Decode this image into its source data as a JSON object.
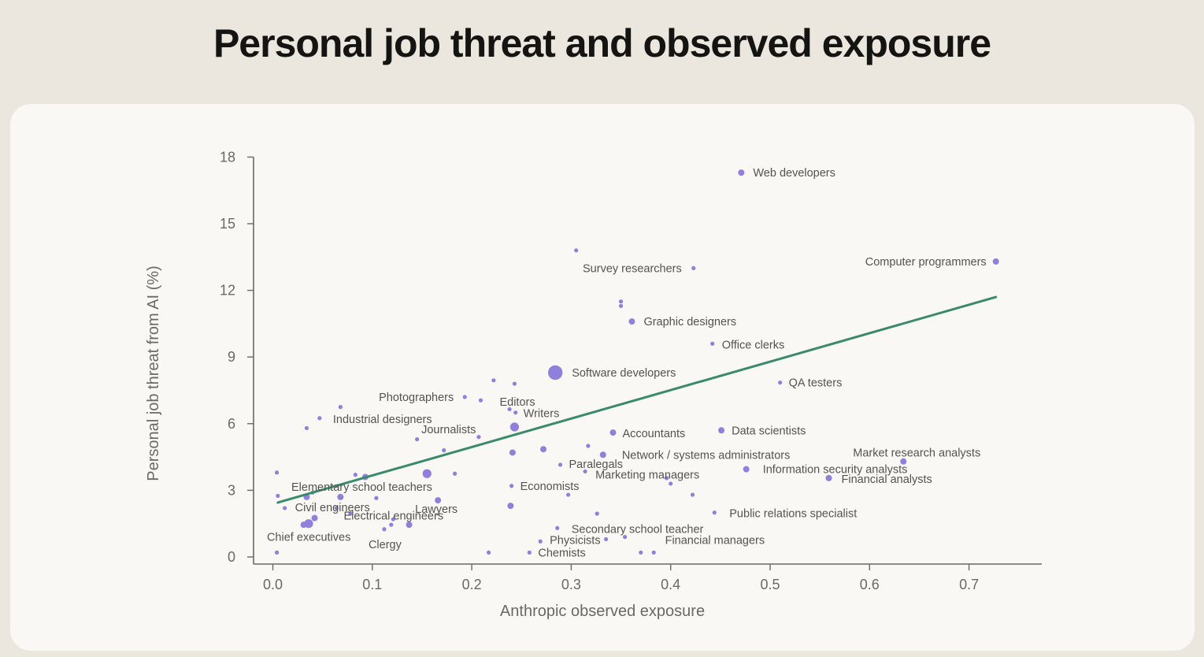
{
  "title": "Personal job threat and observed exposure",
  "colors": {
    "background": "#ebe7df",
    "card": "#f9f8f4",
    "point": "#8f80dc",
    "trend": "#3b8a6b",
    "axis": "#6b6964",
    "text": "#55534e"
  },
  "chart_data": {
    "type": "scatter",
    "title": "Personal job threat and observed exposure",
    "xlabel": "Anthropic observed exposure",
    "ylabel": "Personal job threat from AI (%)",
    "xlim": [
      -0.02,
      0.77
    ],
    "ylim": [
      -0.3,
      18.5
    ],
    "xticks": [
      0.0,
      0.1,
      0.2,
      0.3,
      0.4,
      0.5,
      0.6,
      0.7
    ],
    "xtick_labels": [
      "0.0",
      "0.1",
      "0.2",
      "0.3",
      "0.4",
      "0.5",
      "0.6",
      "0.7"
    ],
    "yticks": [
      0,
      3,
      6,
      9,
      12,
      15,
      18
    ],
    "ytick_labels": [
      "0",
      "3",
      "6",
      "9",
      "12",
      "15",
      "18"
    ],
    "grid": false,
    "legend": "none",
    "trend_line": {
      "x": [
        0.005,
        0.727
      ],
      "y": [
        2.45,
        11.7
      ]
    },
    "points": [
      {
        "x": 0.471,
        "y": 17.3,
        "size": 1,
        "label": "Web developers"
      },
      {
        "x": 0.727,
        "y": 13.3,
        "size": 1,
        "label": "Computer programmers"
      },
      {
        "x": 0.305,
        "y": 13.8,
        "size": 0
      },
      {
        "x": 0.423,
        "y": 13.0,
        "size": 0,
        "label": "Survey researchers"
      },
      {
        "x": 0.35,
        "y": 11.5,
        "size": 0
      },
      {
        "x": 0.35,
        "y": 11.3,
        "size": 0
      },
      {
        "x": 0.361,
        "y": 10.6,
        "size": 1,
        "label": "Graphic designers"
      },
      {
        "x": 0.442,
        "y": 9.6,
        "size": 0,
        "label": "Office clerks"
      },
      {
        "x": 0.284,
        "y": 8.3,
        "size": 3,
        "label": "Software developers"
      },
      {
        "x": 0.51,
        "y": 7.85,
        "size": 0,
        "label": "QA testers"
      },
      {
        "x": 0.222,
        "y": 7.95,
        "size": 0
      },
      {
        "x": 0.243,
        "y": 7.8,
        "size": 0
      },
      {
        "x": 0.193,
        "y": 7.2,
        "size": 0,
        "label": "Photographers"
      },
      {
        "x": 0.209,
        "y": 7.05,
        "size": 0,
        "label": "Editors"
      },
      {
        "x": 0.238,
        "y": 6.65,
        "size": 0
      },
      {
        "x": 0.244,
        "y": 6.5,
        "size": 0,
        "label": "Writers"
      },
      {
        "x": 0.068,
        "y": 6.75,
        "size": 0
      },
      {
        "x": 0.047,
        "y": 6.25,
        "size": 0,
        "label": "Industrial designers"
      },
      {
        "x": 0.034,
        "y": 5.8,
        "size": 0
      },
      {
        "x": 0.243,
        "y": 5.85,
        "size": 2,
        "label": "Journalists"
      },
      {
        "x": 0.207,
        "y": 5.4,
        "size": 0
      },
      {
        "x": 0.145,
        "y": 5.3,
        "size": 0
      },
      {
        "x": 0.342,
        "y": 5.6,
        "size": 1,
        "label": "Accountants"
      },
      {
        "x": 0.451,
        "y": 5.7,
        "size": 1,
        "label": "Data scientists"
      },
      {
        "x": 0.317,
        "y": 5.0,
        "size": 0
      },
      {
        "x": 0.272,
        "y": 4.85,
        "size": 1
      },
      {
        "x": 0.241,
        "y": 4.7,
        "size": 1
      },
      {
        "x": 0.172,
        "y": 4.8,
        "size": 0
      },
      {
        "x": 0.332,
        "y": 4.6,
        "size": 1,
        "label": "Network / systems administrators"
      },
      {
        "x": 0.289,
        "y": 4.15,
        "size": 0,
        "label": "Paralegals"
      },
      {
        "x": 0.634,
        "y": 4.3,
        "size": 1,
        "label": "Market research analysts"
      },
      {
        "x": 0.476,
        "y": 3.95,
        "size": 1,
        "label": "Information security analysts"
      },
      {
        "x": 0.314,
        "y": 3.85,
        "size": 0,
        "label": "Marketing managers"
      },
      {
        "x": 0.396,
        "y": 3.55,
        "size": 0
      },
      {
        "x": 0.4,
        "y": 3.3,
        "size": 0
      },
      {
        "x": 0.559,
        "y": 3.55,
        "size": 1,
        "label": "Financial analysts"
      },
      {
        "x": 0.004,
        "y": 3.8,
        "size": 0
      },
      {
        "x": 0.083,
        "y": 3.7,
        "size": 0
      },
      {
        "x": 0.093,
        "y": 3.6,
        "size": 1
      },
      {
        "x": 0.155,
        "y": 3.75,
        "size": 2
      },
      {
        "x": 0.183,
        "y": 3.75,
        "size": 0
      },
      {
        "x": 0.24,
        "y": 3.2,
        "size": 0,
        "label": "Economists"
      },
      {
        "x": 0.04,
        "y": 2.9,
        "size": 0,
        "label": "Elementary school teachers"
      },
      {
        "x": 0.034,
        "y": 2.7,
        "size": 1
      },
      {
        "x": 0.005,
        "y": 2.75,
        "size": 0
      },
      {
        "x": 0.068,
        "y": 2.7,
        "size": 1
      },
      {
        "x": 0.104,
        "y": 2.65,
        "size": 0
      },
      {
        "x": 0.166,
        "y": 2.55,
        "size": 1,
        "label": "Lawyers"
      },
      {
        "x": 0.297,
        "y": 2.8,
        "size": 0
      },
      {
        "x": 0.422,
        "y": 2.8,
        "size": 0
      },
      {
        "x": 0.012,
        "y": 2.2,
        "size": 0,
        "label": "Civil engineers"
      },
      {
        "x": 0.064,
        "y": 2.2,
        "size": 0
      },
      {
        "x": 0.078,
        "y": 1.95,
        "size": 0
      },
      {
        "x": 0.239,
        "y": 2.3,
        "size": 1
      },
      {
        "x": 0.326,
        "y": 1.95,
        "size": 0
      },
      {
        "x": 0.444,
        "y": 2.0,
        "size": 0,
        "label": "Public relations specialist"
      },
      {
        "x": 0.042,
        "y": 1.75,
        "size": 1,
        "label": "Electrical engineers"
      },
      {
        "x": 0.036,
        "y": 1.5,
        "size": 2,
        "label": "Chief executives"
      },
      {
        "x": 0.031,
        "y": 1.45,
        "size": 1
      },
      {
        "x": 0.121,
        "y": 1.7,
        "size": 0
      },
      {
        "x": 0.119,
        "y": 1.45,
        "size": 0
      },
      {
        "x": 0.137,
        "y": 1.45,
        "size": 1
      },
      {
        "x": 0.112,
        "y": 1.25,
        "size": 0,
        "label": "Clergy"
      },
      {
        "x": 0.286,
        "y": 1.3,
        "size": 0,
        "label": "Secondary school teacher"
      },
      {
        "x": 0.354,
        "y": 0.9,
        "size": 0,
        "label": "Financial managers"
      },
      {
        "x": 0.335,
        "y": 0.8,
        "size": 0,
        "label": "Physicists"
      },
      {
        "x": 0.269,
        "y": 0.7,
        "size": 0
      },
      {
        "x": 0.004,
        "y": 0.2,
        "size": 0
      },
      {
        "x": 0.217,
        "y": 0.2,
        "size": 0
      },
      {
        "x": 0.258,
        "y": 0.2,
        "size": 0,
        "label": "Chemists"
      },
      {
        "x": 0.37,
        "y": 0.2,
        "size": 0
      },
      {
        "x": 0.383,
        "y": 0.2,
        "size": 0
      }
    ]
  }
}
